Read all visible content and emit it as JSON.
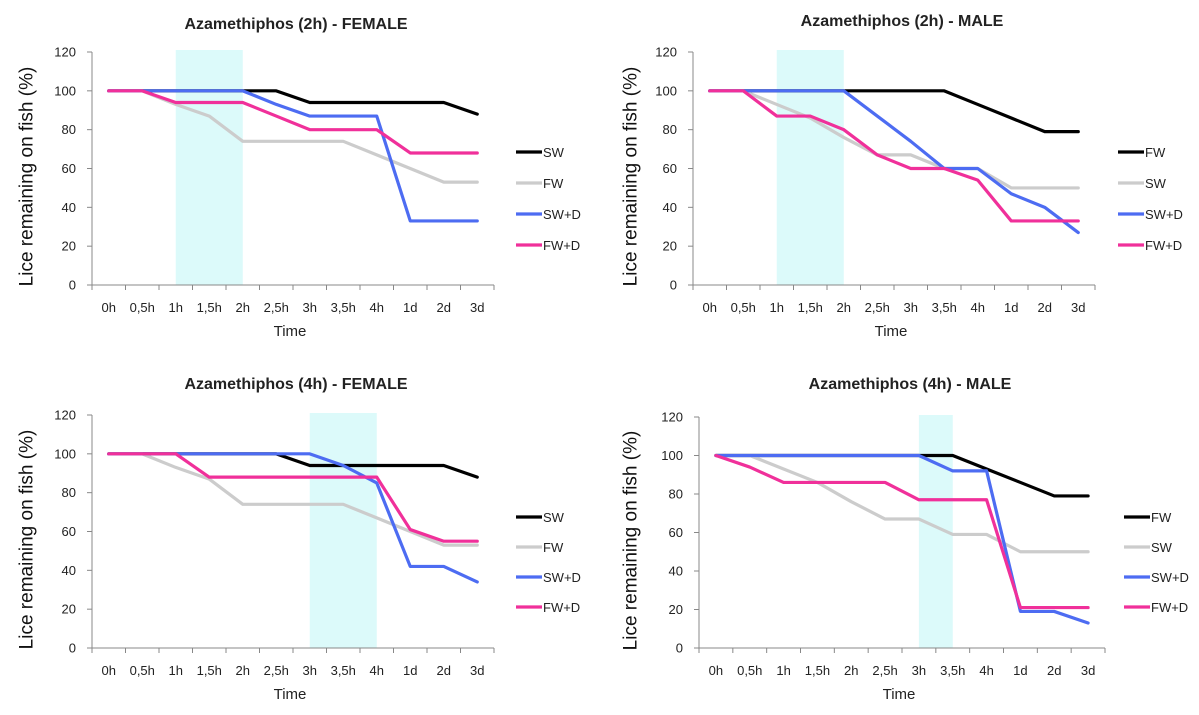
{
  "chart_data": [
    {
      "type": "line",
      "title": "Azamethiphos (2h) - FEMALE",
      "xlabel": "Time",
      "ylabel": "Lice remaining on fish (%)",
      "ylim": [
        0,
        120
      ],
      "yticks": [
        "0",
        "20",
        "40",
        "60",
        "80",
        "100",
        "120"
      ],
      "categories": [
        "0h",
        "0,5h",
        "1h",
        "1,5h",
        "2h",
        "2,5h",
        "3h",
        "3,5h",
        "4h",
        "1d",
        "2d",
        "3d"
      ],
      "shaded_region": [
        "1h",
        "2h"
      ],
      "shade_color": "#dcfafa",
      "legend_position": "right",
      "grid": false,
      "series": [
        {
          "name": "SW",
          "color": "#000000",
          "values": [
            100,
            100,
            100,
            100,
            100,
            100,
            94,
            94,
            94,
            94,
            94,
            88
          ]
        },
        {
          "name": "FW",
          "color": "#cccccc",
          "values": [
            100,
            100,
            93,
            87,
            74,
            74,
            74,
            74,
            67,
            60,
            53,
            53
          ]
        },
        {
          "name": "SW+D",
          "color": "#4d6cf2",
          "values": [
            100,
            100,
            100,
            100,
            100,
            93,
            87,
            87,
            87,
            33,
            33,
            33
          ]
        },
        {
          "name": "FW+D",
          "color": "#f0309a",
          "values": [
            100,
            100,
            94,
            94,
            94,
            87,
            80,
            80,
            80,
            68,
            68,
            68
          ]
        }
      ]
    },
    {
      "type": "line",
      "title": "Azamethiphos (2h) - MALE",
      "xlabel": "Time",
      "ylabel": "Lice remaining on fish (%)",
      "ylim": [
        0,
        120
      ],
      "yticks": [
        "0",
        "20",
        "40",
        "60",
        "80",
        "100",
        "120"
      ],
      "categories": [
        "0h",
        "0,5h",
        "1h",
        "1,5h",
        "2h",
        "2,5h",
        "3h",
        "3,5h",
        "4h",
        "1d",
        "2d",
        "3d"
      ],
      "shaded_region": [
        "1h",
        "2h"
      ],
      "shade_color": "#dcfafa",
      "legend_position": "right",
      "grid": false,
      "series": [
        {
          "name": "FW",
          "color": "#000000",
          "values": [
            100,
            100,
            100,
            100,
            100,
            100,
            100,
            100,
            93,
            86,
            79,
            79
          ]
        },
        {
          "name": "SW",
          "color": "#cccccc",
          "values": [
            100,
            100,
            93,
            86,
            76,
            67,
            67,
            60,
            60,
            50,
            50,
            50
          ]
        },
        {
          "name": "SW+D",
          "color": "#4d6cf2",
          "values": [
            100,
            100,
            100,
            100,
            100,
            87,
            74,
            60,
            60,
            47,
            40,
            27
          ]
        },
        {
          "name": "FW+D",
          "color": "#f0309a",
          "values": [
            100,
            100,
            87,
            87,
            80,
            67,
            60,
            60,
            54,
            33,
            33,
            33
          ]
        }
      ]
    },
    {
      "type": "line",
      "title": "Azamethiphos (4h) - FEMALE",
      "xlabel": "Time",
      "ylabel": "Lice remaining on fish (%)",
      "ylim": [
        0,
        120
      ],
      "yticks": [
        "0",
        "20",
        "40",
        "60",
        "80",
        "100",
        "120"
      ],
      "categories": [
        "0h",
        "0,5h",
        "1h",
        "1,5h",
        "2h",
        "2,5h",
        "3h",
        "3,5h",
        "4h",
        "1d",
        "2d",
        "3d"
      ],
      "shaded_region": [
        "3h",
        "4h"
      ],
      "shade_color": "#dcfafa",
      "legend_position": "right",
      "grid": false,
      "series": [
        {
          "name": "SW",
          "color": "#000000",
          "values": [
            100,
            100,
            100,
            100,
            100,
            100,
            94,
            94,
            94,
            94,
            94,
            88
          ]
        },
        {
          "name": "FW",
          "color": "#cccccc",
          "values": [
            100,
            100,
            93,
            87,
            74,
            74,
            74,
            74,
            67,
            60,
            53,
            53
          ]
        },
        {
          "name": "SW+D",
          "color": "#4d6cf2",
          "values": [
            100,
            100,
            100,
            100,
            100,
            100,
            100,
            94,
            85,
            42,
            42,
            34
          ]
        },
        {
          "name": "FW+D",
          "color": "#f0309a",
          "values": [
            100,
            100,
            100,
            88,
            88,
            88,
            88,
            88,
            88,
            61,
            55,
            55
          ]
        }
      ]
    },
    {
      "type": "line",
      "title": "Azamethiphos (4h) - MALE",
      "xlabel": "Time",
      "ylabel": "Lice remaining on fish (%)",
      "ylim": [
        0,
        120
      ],
      "yticks": [
        "0",
        "20",
        "40",
        "60",
        "80",
        "100",
        "120"
      ],
      "categories": [
        "0h",
        "0,5h",
        "1h",
        "1,5h",
        "2h",
        "2,5h",
        "3h",
        "3,5h",
        "4h",
        "1d",
        "2d",
        "3d"
      ],
      "shaded_region": [
        "3h",
        "3,5h"
      ],
      "shade_color": "#dcfafa",
      "legend_position": "right",
      "grid": false,
      "series": [
        {
          "name": "FW",
          "color": "#000000",
          "values": [
            100,
            100,
            100,
            100,
            100,
            100,
            100,
            100,
            93,
            86,
            79,
            79
          ]
        },
        {
          "name": "SW",
          "color": "#cccccc",
          "values": [
            100,
            100,
            93,
            86,
            76,
            67,
            67,
            59,
            59,
            50,
            50,
            50
          ]
        },
        {
          "name": "SW+D",
          "color": "#4d6cf2",
          "values": [
            100,
            100,
            100,
            100,
            100,
            100,
            100,
            92,
            92,
            19,
            19,
            13
          ]
        },
        {
          "name": "FW+D",
          "color": "#f0309a",
          "values": [
            100,
            94,
            86,
            86,
            86,
            86,
            77,
            77,
            77,
            21,
            21,
            21
          ]
        }
      ]
    }
  ]
}
